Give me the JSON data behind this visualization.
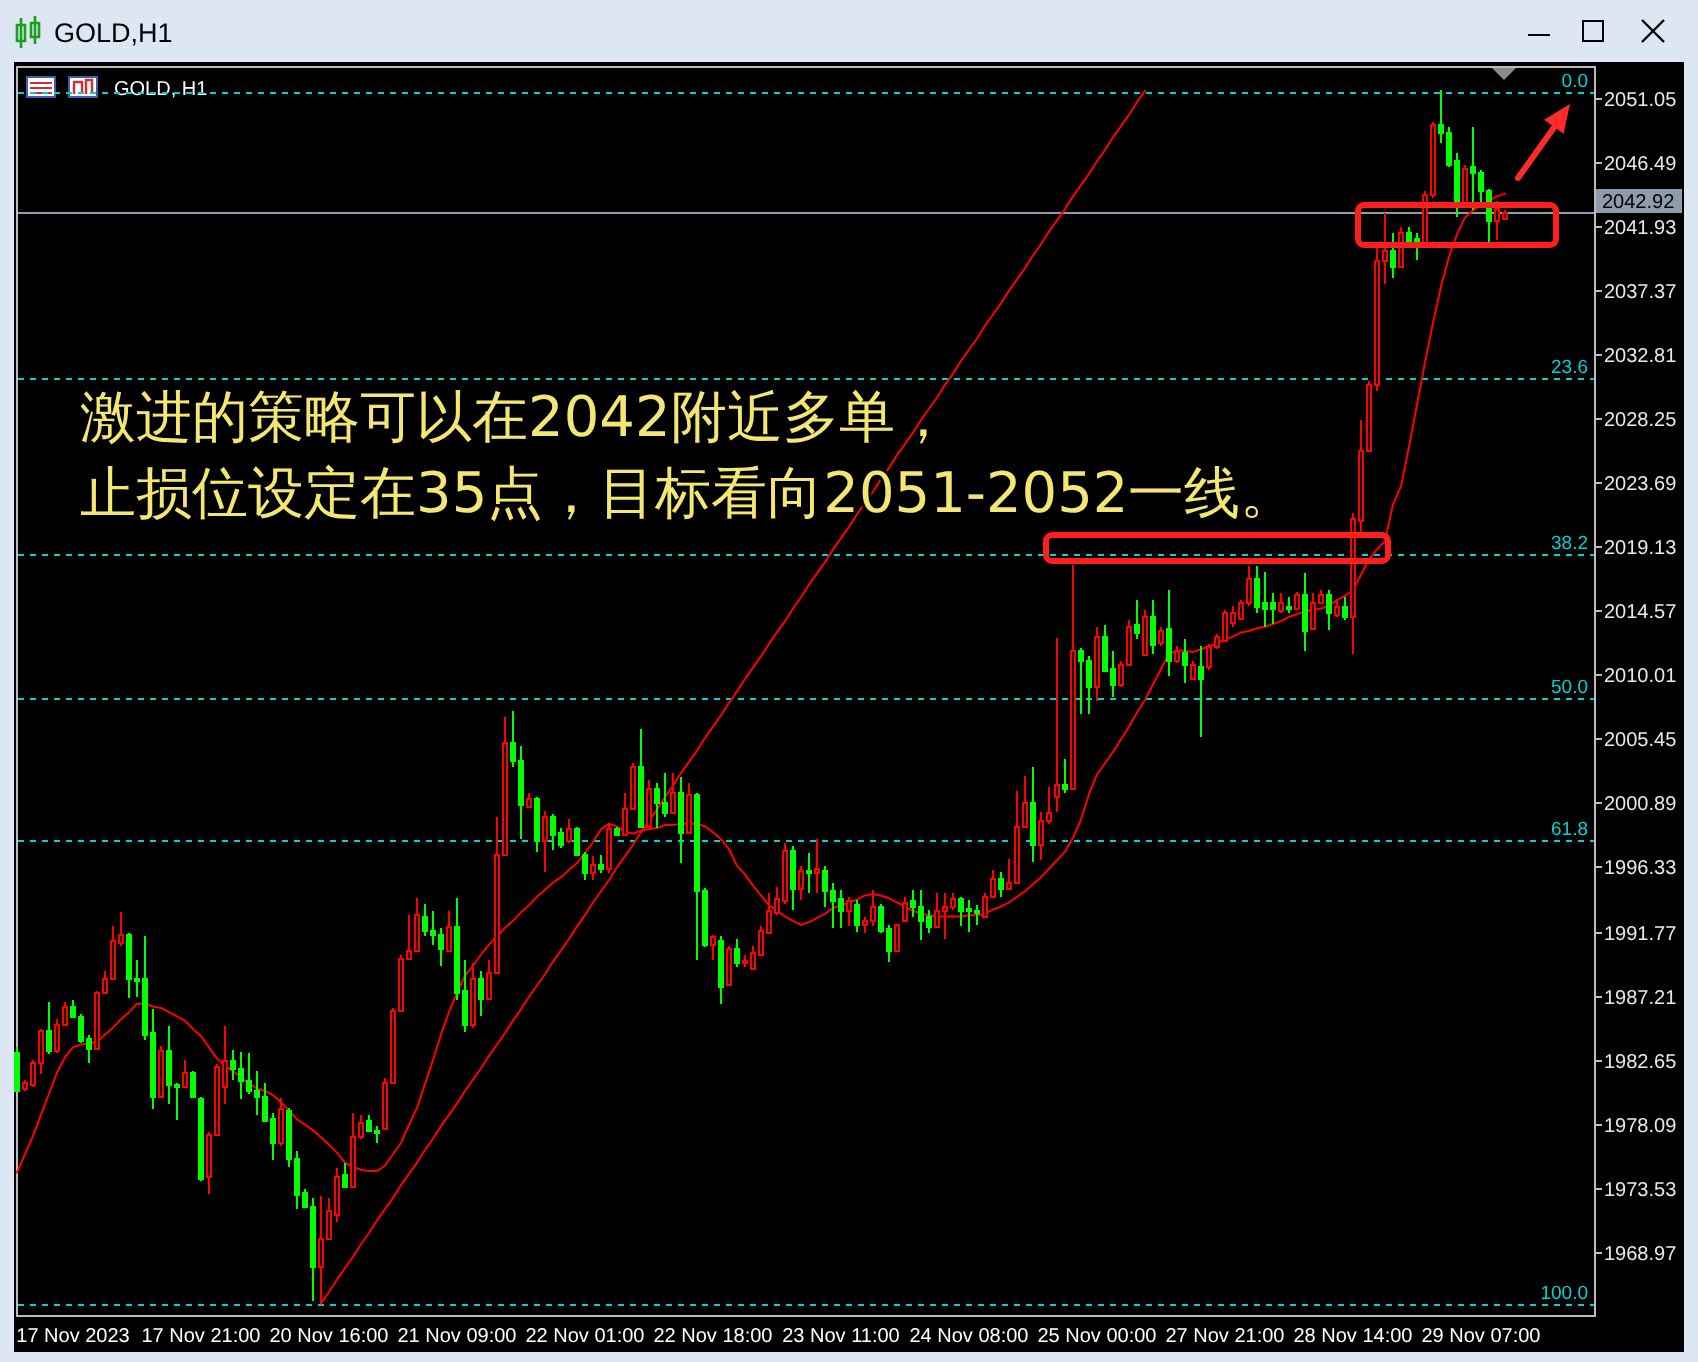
{
  "chart_data": {
    "type": "candlestick",
    "title": "GOLD,H1",
    "subtitle": "GOLD, H1",
    "categories": [
      null,
      null,
      null,
      null,
      null,
      null,
      null,
      "17 Nov 2023",
      null,
      null,
      null,
      null,
      null,
      null,
      null,
      null,
      null,
      null,
      null,
      null,
      null,
      null,
      null,
      "17 Nov 21:00",
      null,
      null,
      null,
      null,
      null,
      null,
      null,
      null,
      null,
      null,
      null,
      null,
      null,
      null,
      null,
      "20 Nov 16:00",
      null,
      null,
      null,
      null,
      null,
      null,
      null,
      null,
      null,
      null,
      null,
      null,
      null,
      null,
      null,
      "21 Nov 09:00",
      null,
      null,
      null,
      null,
      null,
      null,
      null,
      null,
      null,
      null,
      null,
      null,
      null,
      null,
      null,
      "22 Nov 01:00",
      null,
      null,
      null,
      null,
      null,
      null,
      null,
      null,
      null,
      null,
      null,
      null,
      null,
      null,
      null,
      "22 Nov 18:00",
      null,
      null,
      null,
      null,
      null,
      null,
      null,
      null,
      null,
      null,
      null,
      null,
      null,
      null,
      null,
      "23 Nov 11:00",
      null,
      null,
      null,
      null,
      null,
      null,
      null,
      null,
      null,
      null,
      null,
      null,
      null,
      null,
      null,
      "24 Nov 08:00",
      null,
      null,
      null,
      null,
      null,
      null,
      null,
      null,
      null,
      null,
      null,
      null,
      null,
      null,
      null,
      "25 Nov 00:00",
      null,
      null,
      null,
      null,
      null,
      null,
      null,
      null,
      null,
      null,
      null,
      null,
      null,
      null,
      null,
      "27 Nov 21:00",
      null,
      null,
      null,
      null,
      null,
      null,
      null,
      null,
      null,
      null,
      null,
      null,
      null,
      null,
      null,
      "28 Nov 14:00",
      null,
      null,
      null,
      null,
      null,
      null,
      null,
      null,
      null,
      null,
      null,
      null,
      null,
      null,
      null,
      "29 Nov 07:00",
      null,
      null,
      null
    ],
    "ohlc": [
      [
        1983.2,
        1983.5,
        1980.3,
        1980.5
      ],
      [
        1980.6,
        1981.2,
        1980.4,
        1981.1
      ],
      [
        1980.9,
        1982.6,
        1980.7,
        1982.5
      ],
      [
        1982.4,
        1984.8,
        1981.6,
        1984.7
      ],
      [
        1984.7,
        1986.7,
        1983.0,
        1983.3
      ],
      [
        1983.3,
        1985.5,
        1983.1,
        1985.2
      ],
      [
        1985.2,
        1986.7,
        1985.1,
        1986.4
      ],
      [
        1986.4,
        1986.9,
        1985.6,
        1985.7
      ],
      [
        1985.8,
        1985.9,
        1983.8,
        1984.0
      ],
      [
        1984.2,
        1984.4,
        1982.4,
        1983.4
      ],
      [
        1983.4,
        1987.5,
        1983.3,
        1987.4
      ],
      [
        1987.4,
        1988.9,
        1987.3,
        1988.4
      ],
      [
        1988.5,
        1992.1,
        1988.4,
        1991.1
      ],
      [
        1991.0,
        1993.1,
        1990.7,
        1991.5
      ],
      [
        1991.5,
        1991.6,
        1987.0,
        1988.5
      ],
      [
        1988.5,
        1989.7,
        1987.1,
        1988.3
      ],
      [
        1988.4,
        1991.4,
        1984.0,
        1984.5
      ],
      [
        1984.6,
        1986.2,
        1979.1,
        1980.1
      ],
      [
        1980.1,
        1983.6,
        1980.0,
        1983.3
      ],
      [
        1983.3,
        1985.0,
        1979.5,
        1980.9
      ],
      [
        1980.9,
        1981.0,
        1978.3,
        1980.8
      ],
      [
        1980.8,
        1982.6,
        1980.7,
        1981.8
      ],
      [
        1981.7,
        1981.8,
        1980.0,
        1980.1
      ],
      [
        1979.9,
        1980.0,
        1974.0,
        1974.2
      ],
      [
        1974.3,
        1977.5,
        1973.1,
        1977.4
      ],
      [
        1977.3,
        1982.3,
        1977.2,
        1982.2
      ],
      [
        1980.8,
        1985.0,
        1979.5,
        1982.6
      ],
      [
        1982.6,
        1983.3,
        1981.2,
        1982.0
      ],
      [
        1982.0,
        1983.2,
        1979.8,
        1981.2
      ],
      [
        1981.2,
        1983.1,
        1980.2,
        1980.5
      ],
      [
        1980.5,
        1981.8,
        1978.7,
        1980.0
      ],
      [
        1980.1,
        1981.0,
        1978.3,
        1978.4
      ],
      [
        1978.5,
        1978.8,
        1975.5,
        1976.7
      ],
      [
        1976.7,
        1979.9,
        1976.5,
        1979.2
      ],
      [
        1979.1,
        1979.2,
        1975.0,
        1975.6
      ],
      [
        1975.6,
        1976.1,
        1972.0,
        1973.1
      ],
      [
        1973.2,
        1973.4,
        1972.1,
        1972.2
      ],
      [
        1972.2,
        1972.8,
        1965.5,
        1968.0
      ],
      [
        1968.0,
        1972.9,
        1965.3,
        1970.0
      ],
      [
        1969.9,
        1972.8,
        1969.8,
        1971.9
      ],
      [
        1971.7,
        1974.9,
        1971.1,
        1974.4
      ],
      [
        1974.5,
        1975.3,
        1973.5,
        1973.6
      ],
      [
        1973.6,
        1978.8,
        1973.5,
        1977.2
      ],
      [
        1977.2,
        1978.7,
        1977.0,
        1978.2
      ],
      [
        1978.4,
        1978.7,
        1977.5,
        1977.6
      ],
      [
        1977.6,
        1977.9,
        1976.7,
        1977.5
      ],
      [
        1977.8,
        1981.3,
        1977.6,
        1981.1
      ],
      [
        1981.1,
        1986.3,
        1981.0,
        1986.2
      ],
      [
        1986.2,
        1990.1,
        1986.1,
        1989.9
      ],
      [
        1989.8,
        1992.9,
        1989.7,
        1990.4
      ],
      [
        1990.4,
        1994.1,
        1990.3,
        1993.0
      ],
      [
        1992.9,
        1993.7,
        1991.4,
        1991.9
      ],
      [
        1991.9,
        1993.2,
        1990.8,
        1991.5
      ],
      [
        1991.6,
        1992.0,
        1989.3,
        1990.5
      ],
      [
        1990.4,
        1993.2,
        1990.3,
        1992.1
      ],
      [
        1992.1,
        1994.1,
        1986.9,
        1987.5
      ],
      [
        1987.6,
        1989.7,
        1984.6,
        1985.2
      ],
      [
        1985.2,
        1989.5,
        1984.9,
        1988.4
      ],
      [
        1988.4,
        1988.9,
        1985.7,
        1987.0
      ],
      [
        1987.0,
        1989.7,
        1986.9,
        1988.9
      ],
      [
        1988.8,
        1999.9,
        1988.7,
        1997.2
      ],
      [
        1997.2,
        2007.0,
        1997.1,
        2005.2
      ],
      [
        2005.2,
        2007.4,
        2003.4,
        2004.0
      ],
      [
        2004.0,
        2004.9,
        1998.3,
        2000.8
      ],
      [
        2000.7,
        2001.6,
        2000.6,
        2001.2
      ],
      [
        2001.2,
        2001.3,
        1997.4,
        1998.3
      ],
      [
        1998.3,
        2000.3,
        1996.0,
        1999.9
      ],
      [
        1999.9,
        2000.1,
        1997.5,
        1998.7
      ],
      [
        1998.8,
        1999.1,
        1997.7,
        1998.0
      ],
      [
        1998.3,
        1999.7,
        1998.0,
        1999.1
      ],
      [
        1999.1,
        1999.2,
        1997.1,
        1997.2
      ],
      [
        1997.2,
        1997.4,
        1995.4,
        1995.9
      ],
      [
        1995.9,
        1997.1,
        1995.4,
        1996.5
      ],
      [
        1996.5,
        1997.2,
        1995.9,
        1996.2
      ],
      [
        1996.2,
        1999.3,
        1995.9,
        1999.1
      ],
      [
        1999.1,
        1999.2,
        1998.5,
        1998.6
      ],
      [
        1998.6,
        2001.6,
        1998.5,
        2000.5
      ],
      [
        2000.5,
        2003.7,
        2000.4,
        2003.5
      ],
      [
        2003.5,
        2006.1,
        1999.1,
        1999.3
      ],
      [
        1999.3,
        2002.5,
        1999.2,
        2001.9
      ],
      [
        2001.9,
        2002.3,
        1999.1,
        2000.9
      ],
      [
        2001.0,
        2003.0,
        1999.9,
        2000.3
      ],
      [
        2000.3,
        2003.0,
        2000.1,
        2001.7
      ],
      [
        2001.7,
        2002.7,
        1996.6,
        1998.8
      ],
      [
        1998.8,
        2002.3,
        1998.7,
        2001.5
      ],
      [
        2001.5,
        2001.6,
        1989.7,
        1994.7
      ],
      [
        1994.7,
        1994.8,
        1990.6,
        1990.8
      ],
      [
        1990.8,
        1991.5,
        1989.7,
        1991.4
      ],
      [
        1991.2,
        1991.4,
        1986.6,
        1987.9
      ],
      [
        1988.0,
        1990.7,
        1987.9,
        1990.6
      ],
      [
        1990.6,
        1991.2,
        1989.2,
        1989.5
      ],
      [
        1989.5,
        1990.1,
        1989.2,
        1989.7
      ],
      [
        1989.2,
        1990.7,
        1989.0,
        1990.3
      ],
      [
        1990.2,
        1992.1,
        1990.1,
        1991.8
      ],
      [
        1991.7,
        1994.5,
        1991.6,
        1993.3
      ],
      [
        1993.1,
        1994.9,
        1992.9,
        1994.1
      ],
      [
        1994.0,
        1998.0,
        1993.7,
        1997.5
      ],
      [
        1997.5,
        1997.8,
        1993.3,
        1994.9
      ],
      [
        1994.9,
        1996.4,
        1994.0,
        1996.1
      ],
      [
        1996.1,
        1997.3,
        1994.5,
        1995.9
      ],
      [
        1995.9,
        1998.3,
        1994.5,
        1996.3
      ],
      [
        1996.1,
        1996.4,
        1993.5,
        1994.7
      ],
      [
        1994.7,
        1995.2,
        1992.0,
        1994.0
      ],
      [
        1994.1,
        1994.7,
        1992.0,
        1993.3
      ],
      [
        1993.2,
        1994.2,
        1992.1,
        1994.0
      ],
      [
        1993.7,
        1994.0,
        1991.7,
        1992.2
      ],
      [
        1992.2,
        1992.8,
        1991.6,
        1992.6
      ],
      [
        1992.5,
        1994.7,
        1992.1,
        1993.5
      ],
      [
        1993.5,
        1993.7,
        1991.6,
        1991.9
      ],
      [
        1992.0,
        1992.2,
        1989.6,
        1990.4
      ],
      [
        1990.4,
        1992.3,
        1990.3,
        1992.2
      ],
      [
        1992.6,
        1994.2,
        1992.5,
        1993.9
      ],
      [
        1994.0,
        1994.7,
        1992.8,
        1993.6
      ],
      [
        1993.6,
        1994.7,
        1991.1,
        1992.6
      ],
      [
        1992.8,
        1993.3,
        1991.6,
        1992.1
      ],
      [
        1992.1,
        1994.5,
        1992.0,
        1993.3
      ],
      [
        1993.3,
        1994.5,
        1991.2,
        1993.6
      ],
      [
        1993.5,
        1994.5,
        1993.3,
        1994.1
      ],
      [
        1994.1,
        1994.2,
        1992.1,
        1993.3
      ],
      [
        1993.4,
        1994.0,
        1991.7,
        1993.2
      ],
      [
        1993.3,
        1993.6,
        1992.2,
        1993.2
      ],
      [
        1992.9,
        1994.5,
        1992.8,
        1994.2
      ],
      [
        1994.2,
        1996.1,
        1994.1,
        1995.5
      ],
      [
        1995.5,
        1996.0,
        1994.2,
        1994.8
      ],
      [
        1994.8,
        1996.9,
        1994.7,
        1995.3
      ],
      [
        1995.2,
        2001.7,
        1995.1,
        1999.3
      ],
      [
        1999.3,
        2002.8,
        1999.2,
        2000.9
      ],
      [
        2000.9,
        2003.4,
        1996.7,
        1998.0
      ],
      [
        1998.0,
        2000.2,
        1996.8,
        1999.7
      ],
      [
        1999.6,
        2002.0,
        1999.4,
        2000.2
      ],
      [
        2001.3,
        2012.6,
        2000.2,
        2002.2
      ],
      [
        2002.2,
        2004.0,
        2001.6,
        2001.9
      ],
      [
        2001.9,
        2017.8,
        2001.8,
        2011.8
      ],
      [
        2011.8,
        2011.9,
        2007.2,
        2011.0
      ],
      [
        2011.0,
        2011.3,
        2007.2,
        2009.2
      ],
      [
        2009.2,
        2013.4,
        2008.1,
        2012.7
      ],
      [
        2012.7,
        2013.5,
        2010.2,
        2010.3
      ],
      [
        2010.5,
        2011.7,
        2008.4,
        2009.4
      ],
      [
        2009.4,
        2011.0,
        2009.1,
        2010.8
      ],
      [
        2010.8,
        2013.9,
        2010.7,
        2013.5
      ],
      [
        2013.6,
        2015.3,
        2012.5,
        2013.0
      ],
      [
        2011.5,
        2014.6,
        2011.3,
        2014.2
      ],
      [
        2014.1,
        2015.3,
        2011.5,
        2012.2
      ],
      [
        2012.3,
        2013.4,
        2012.0,
        2013.2
      ],
      [
        2013.3,
        2016.0,
        2009.9,
        2011.0
      ],
      [
        2011.0,
        2012.0,
        2010.8,
        2011.8
      ],
      [
        2011.6,
        2012.5,
        2009.4,
        2010.8
      ],
      [
        2009.7,
        2011.0,
        2009.6,
        2010.7
      ],
      [
        2010.6,
        2012.0,
        2005.6,
        2009.7
      ],
      [
        2010.6,
        2012.2,
        2010.3,
        2012.0
      ],
      [
        2012.0,
        2012.9,
        2011.8,
        2012.7
      ],
      [
        2012.5,
        2014.6,
        2012.4,
        2014.4
      ],
      [
        2013.8,
        2014.9,
        2013.4,
        2014.5
      ],
      [
        2014.0,
        2015.3,
        2013.9,
        2015.1
      ],
      [
        2015.1,
        2017.7,
        2014.9,
        2016.8
      ],
      [
        2016.8,
        2017.7,
        2014.4,
        2014.9
      ],
      [
        2015.1,
        2017.3,
        2013.4,
        2014.8
      ],
      [
        2015.1,
        2015.8,
        2013.6,
        2014.7
      ],
      [
        2014.6,
        2015.8,
        2014.4,
        2015.1
      ],
      [
        2014.9,
        2015.5,
        2014.4,
        2014.7
      ],
      [
        2014.8,
        2015.9,
        2014.6,
        2015.8
      ],
      [
        2015.8,
        2017.2,
        2011.7,
        2013.2
      ],
      [
        2013.3,
        2015.8,
        2013.2,
        2015.2
      ],
      [
        2015.2,
        2016.0,
        2015.1,
        2015.8
      ],
      [
        2015.8,
        2016.0,
        2013.2,
        2014.4
      ],
      [
        2014.3,
        2015.3,
        2014.1,
        2014.9
      ],
      [
        2014.9,
        2015.5,
        2013.9,
        2014.1
      ],
      [
        2014.1,
        2021.5,
        2011.5,
        2021.2
      ],
      [
        2021.0,
        2028.1,
        2020.1,
        2026.0
      ],
      [
        2026.0,
        2030.9,
        2025.8,
        2030.7
      ],
      [
        2030.6,
        2040.4,
        2030.2,
        2039.5
      ],
      [
        2039.5,
        2042.8,
        2037.8,
        2040.2
      ],
      [
        2040.2,
        2041.4,
        2038.2,
        2039.1
      ],
      [
        2039.1,
        2041.8,
        2039.0,
        2041.5
      ],
      [
        2041.5,
        2041.8,
        2040.7,
        2040.9
      ],
      [
        2041.0,
        2041.4,
        2039.5,
        2040.7
      ],
      [
        2040.8,
        2044.4,
        2040.7,
        2044.2
      ],
      [
        2044.2,
        2049.3,
        2043.9,
        2049.2
      ],
      [
        2049.2,
        2051.6,
        2047.8,
        2048.6
      ],
      [
        2048.6,
        2048.9,
        2046.1,
        2046.3
      ],
      [
        2046.6,
        2047.1,
        2042.5,
        2043.5
      ],
      [
        2043.6,
        2046.2,
        2043.5,
        2046.0
      ],
      [
        2046.1,
        2048.9,
        2043.0,
        2045.7
      ],
      [
        2045.7,
        2045.9,
        2043.2,
        2044.4
      ],
      [
        2044.4,
        2044.5,
        2040.7,
        2042.3
      ],
      [
        2042.3,
        2043.7,
        2040.9,
        2043.2
      ],
      [
        2042.4,
        2043.0,
        2042.3,
        2042.9
      ]
    ],
    "colors": [
      "#00ff00",
      "#ff0000",
      "#ff0000",
      "#ff0000",
      "#00ff00",
      "#ff0000",
      "#ff0000",
      "#00ff00",
      "#00ff00",
      "#00ff00",
      "#ff0000",
      "#ff0000",
      "#ff0000",
      "#ff0000",
      "#00ff00",
      "#00ff00",
      "#00ff00",
      "#00ff00",
      "#ff0000",
      "#00ff00",
      "#00ff00",
      "#ff0000",
      "#00ff00",
      "#00ff00",
      "#ff0000",
      "#ff0000",
      "#ff0000",
      "#00ff00",
      "#00ff00",
      "#00ff00",
      "#00ff00",
      "#00ff00",
      "#00ff00",
      "#ff0000",
      "#00ff00",
      "#00ff00",
      "#00ff00",
      "#00ff00",
      "#ff0000",
      "#ff0000",
      "#ff0000",
      "#00ff00",
      "#ff0000",
      "#ff0000",
      "#00ff00",
      "#00ff00",
      "#ff0000",
      "#ff0000",
      "#ff0000",
      "#ff0000",
      "#ff0000",
      "#00ff00",
      "#00ff00",
      "#00ff00",
      "#ff0000",
      "#00ff00",
      "#00ff00",
      "#ff0000",
      "#00ff00",
      "#ff0000",
      "#ff0000",
      "#ff0000",
      "#00ff00",
      "#00ff00",
      "#ff0000",
      "#00ff00",
      "#ff0000",
      "#00ff00",
      "#00ff00",
      "#ff0000",
      "#00ff00",
      "#00ff00",
      "#ff0000",
      "#00ff00",
      "#ff0000",
      "#00ff00",
      "#ff0000",
      "#ff0000",
      "#00ff00",
      "#ff0000",
      "#00ff00",
      "#00ff00",
      "#ff0000",
      "#00ff00",
      "#ff0000",
      "#00ff00",
      "#00ff00",
      "#ff0000",
      "#00ff00",
      "#ff0000",
      "#00ff00",
      "#ff0000",
      "#ff0000",
      "#ff0000",
      "#ff0000",
      "#ff0000",
      "#ff0000",
      "#00ff00",
      "#ff0000",
      "#00ff00",
      "#ff0000",
      "#00ff00",
      "#00ff00",
      "#00ff00",
      "#ff0000",
      "#00ff00",
      "#ff0000",
      "#ff0000",
      "#00ff00",
      "#00ff00",
      "#ff0000",
      "#ff0000",
      "#00ff00",
      "#00ff00",
      "#00ff00",
      "#ff0000",
      "#ff0000",
      "#ff0000",
      "#00ff00",
      "#00ff00",
      "#00ff00",
      "#ff0000",
      "#ff0000",
      "#00ff00",
      "#ff0000",
      "#ff0000",
      "#ff0000",
      "#00ff00",
      "#ff0000",
      "#ff0000",
      "#ff0000",
      "#00ff00",
      "#ff0000",
      "#00ff00",
      "#00ff00",
      "#ff0000",
      "#00ff00",
      "#00ff00",
      "#ff0000",
      "#ff0000",
      "#00ff00",
      "#ff0000",
      "#00ff00",
      "#ff0000",
      "#00ff00",
      "#ff0000",
      "#00ff00",
      "#ff0000",
      "#00ff00",
      "#ff0000",
      "#ff0000",
      "#ff0000",
      "#ff0000",
      "#ff0000",
      "#ff0000",
      "#00ff00",
      "#00ff00",
      "#00ff00",
      "#ff0000",
      "#00ff00",
      "#ff0000",
      "#00ff00",
      "#ff0000",
      "#ff0000",
      "#00ff00",
      "#ff0000",
      "#00ff00",
      "#ff0000",
      "#ff0000",
      "#ff0000",
      "#ff0000",
      "#ff0000",
      "#00ff00",
      "#ff0000",
      "#00ff00",
      "#00ff00",
      "#ff0000",
      "#ff0000",
      "#00ff00",
      "#00ff00",
      "#00ff00",
      "#ff0000",
      "#00ff00",
      "#00ff00",
      "#00ff00",
      "#ff0000",
      "#ff0000"
    ],
    "series": [
      {
        "type": "line",
        "color": "#ff0000",
        "values": [
          1974.6,
          1975.9,
          1977.2,
          1978.7,
          1980.2,
          1981.7,
          1982.8,
          1983.5,
          1983.7,
          1983.8,
          1983.9,
          1984.4,
          1984.9,
          1985.5,
          1986.0,
          1986.6,
          1986.6,
          1986.4,
          1986.3,
          1986.0,
          1985.7,
          1985.4,
          1984.8,
          1984.3,
          1983.5,
          1982.7,
          1982.2,
          1981.8,
          1981.4,
          1980.9,
          1980.6,
          1980.4,
          1980.1,
          1979.6,
          1979.0,
          1978.4,
          1978.0,
          1977.6,
          1977.1,
          1976.6,
          1976.0,
          1975.3,
          1975.0,
          1974.8,
          1974.7,
          1974.7,
          1975.1,
          1975.9,
          1976.7,
          1978.0,
          1979.2,
          1980.9,
          1982.6,
          1984.4,
          1986.0,
          1987.4,
          1988.6,
          1989.3,
          1990.1,
          1990.8,
          1991.4,
          1992.0,
          1992.5,
          1993.1,
          1993.6,
          1994.2,
          1994.7,
          1995.2,
          1995.6,
          1996.1,
          1996.6,
          1997.3,
          1998.1,
          1999.0,
          1999.4,
          1999.2,
          1998.8,
          1998.7,
          1998.9,
          1999.0,
          1999.1,
          1999.3,
          1999.3,
          1999.4,
          1999.4,
          1999.4,
          1999.2,
          1998.8,
          1998.3,
          1997.6,
          1996.4,
          1995.8,
          1995.0,
          1994.3,
          1993.6,
          1993.2,
          1992.8,
          1992.5,
          1992.2,
          1992.4,
          1992.7,
          1993.0,
          1993.4,
          1993.6,
          1993.8,
          1994.0,
          1994.3,
          1994.4,
          1994.3,
          1994.1,
          1993.8,
          1993.5,
          1993.2,
          1993.0,
          1992.9,
          1992.8,
          1992.8,
          1992.8,
          1992.8,
          1992.9,
          1992.9,
          1993.0,
          1993.3,
          1993.5,
          1993.8,
          1994.2,
          1994.6,
          1995.1,
          1995.6,
          1996.2,
          1996.8,
          1997.4,
          1998.4,
          1999.7,
          2001.5,
          2002.9,
          2003.7,
          2004.5,
          2005.4,
          2006.3,
          2007.3,
          2008.2,
          2009.3,
          2010.4,
          2011.5,
          2011.7,
          2011.7,
          2011.6,
          2011.8,
          2012.0,
          2012.2,
          2012.5,
          2012.7,
          2013.0,
          2013.1,
          2013.3,
          2013.4,
          2013.6,
          2013.8,
          2014.1,
          2014.3,
          2014.5,
          2014.6,
          2014.7,
          2014.9,
          2015.3,
          2015.6,
          2016.0,
          2017.1,
          2018.2,
          2018.9,
          2019.5,
          2022.1,
          2023.4,
          2026.2,
          2029.2,
          2032.2,
          2035.0,
          2037.6,
          2039.7,
          2041.3,
          2042.5,
          2043.0,
          2043.4,
          2043.7,
          2044.0,
          2044.2
        ]
      },
      {
        "type": "line",
        "color": "#ff0000",
        "values": [
          null,
          null,
          null,
          null,
          null,
          null,
          null,
          null,
          null,
          null,
          null,
          null,
          null,
          null,
          null,
          null,
          null,
          null,
          null,
          null,
          null,
          null,
          null,
          null,
          null,
          null,
          null,
          null,
          null,
          null,
          null,
          null,
          null,
          null,
          null,
          null,
          null,
          null,
          1965.3,
          1966.1,
          1967.0,
          1967.8,
          1968.6,
          1969.5,
          1970.3,
          1971.2,
          1972.0,
          1972.8,
          1973.7,
          1974.5,
          1975.3,
          1976.2,
          1977.0,
          1977.9,
          1978.7,
          1979.5,
          1980.4,
          1981.2,
          1982.0,
          1982.9,
          1983.7,
          1984.5,
          1985.4,
          1986.2,
          1987.1,
          1987.9,
          1988.7,
          1989.6,
          1990.4,
          1991.2,
          1992.1,
          1992.9,
          1993.8,
          1994.6,
          1995.4,
          1996.3,
          1997.1,
          1997.9,
          1998.8,
          1999.6,
          2000.4,
          2001.3,
          2002.1,
          2003.0,
          2003.8,
          2004.6,
          2005.5,
          2006.3,
          2007.1,
          2008.0,
          2008.8,
          2009.7,
          2010.5,
          2011.3,
          2012.2,
          2013.0,
          2013.8,
          2014.7,
          2015.5,
          2016.4,
          2017.2,
          2018.0,
          2018.9,
          2019.7,
          2020.5,
          2021.4,
          2022.2,
          2023.0,
          2023.9,
          2024.7,
          2025.6,
          2026.4,
          2027.2,
          2028.1,
          2028.9,
          2029.7,
          2030.6,
          2031.4,
          2032.3,
          2033.1,
          2033.9,
          2034.8,
          2035.6,
          2036.4,
          2037.3,
          2038.1,
          2038.9,
          2039.8,
          2040.6,
          2041.5,
          2042.3,
          2043.1,
          2044.0,
          2044.8,
          2045.6,
          2046.5,
          2047.3,
          2048.2,
          2049.0,
          2049.8,
          2050.7,
          2051.5,
          null,
          null,
          null,
          null,
          null,
          null,
          null,
          null,
          null,
          null,
          null,
          null,
          null,
          null,
          null,
          null,
          null,
          null,
          null,
          null,
          null,
          null,
          null,
          null,
          null,
          null,
          null,
          null,
          null,
          null,
          null,
          null,
          null,
          null,
          null,
          null,
          null,
          null,
          null,
          null,
          null,
          null,
          null,
          null,
          null
        ]
      }
    ],
    "ylim": [
      1964.4,
      2053.2
    ],
    "yticks": [
      1968.97,
      1973.53,
      1978.09,
      1982.65,
      1987.21,
      1991.77,
      1996.33,
      2000.89,
      2005.45,
      2010.01,
      2014.57,
      2019.13,
      2023.69,
      2028.25,
      2032.81,
      2037.37,
      2041.93,
      2046.49,
      2051.05
    ],
    "y2lim": [
      101.0,
      -2.0
    ],
    "ref_lines": [
      {
        "axis": "y2",
        "value": 0.0,
        "label": "0.0",
        "color": "#00d2d2",
        "line_style": "dashed"
      },
      {
        "axis": "y2",
        "value": 23.6,
        "label": "23.6",
        "color": "#00d2d2",
        "line_style": "dashed"
      },
      {
        "axis": "y2",
        "value": 38.2,
        "label": "38.2",
        "color": "#00d2d2",
        "line_style": "dashed"
      },
      {
        "axis": "y2",
        "value": 50.0,
        "label": "50.0",
        "color": "#00d2d2",
        "line_style": "dashed"
      },
      {
        "axis": "y2",
        "value": 61.8,
        "label": "61.8",
        "color": "#00d2d2",
        "line_style": "dashed"
      },
      {
        "axis": "y2",
        "value": 100.0,
        "label": "100.0",
        "color": "#00d2d2",
        "line_style": "dashed"
      },
      {
        "axis": "y",
        "value": 2042.92,
        "label": "2042.92",
        "color": "#8e9cad",
        "line_style": "solid"
      }
    ],
    "annotations": [
      "激进的策略可以在2042附近多单，",
      "止损位设定在35点，目标看向2051-2052一线。"
    ]
  }
}
